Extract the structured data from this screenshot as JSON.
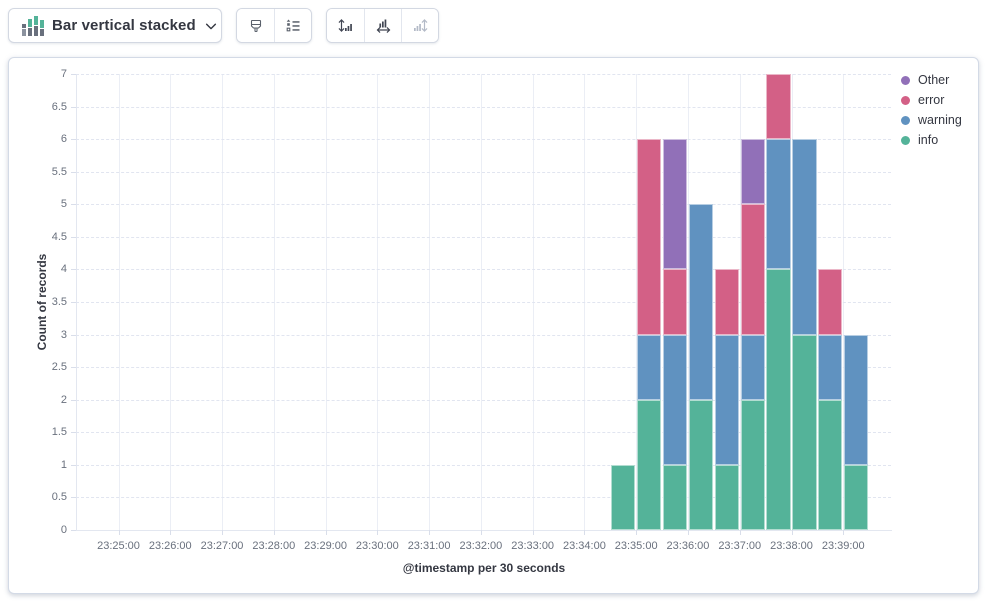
{
  "toolbar": {
    "chart_type": {
      "label": "Bar vertical stacked",
      "icon": "bar-vertical-stacked-icon"
    },
    "buttons": [
      {
        "id": "visual-options",
        "icon": "paint-brush-icon",
        "disabled": false
      },
      {
        "id": "legend-settings",
        "icon": "legend-list-icon",
        "disabled": false
      },
      {
        "id": "left-axis-settings",
        "icon": "left-axis-icon",
        "disabled": false
      },
      {
        "id": "bottom-axis-settings",
        "icon": "bottom-axis-icon",
        "disabled": false
      },
      {
        "id": "right-axis-settings",
        "icon": "right-axis-icon",
        "disabled": true
      }
    ]
  },
  "chart_data": {
    "type": "bar",
    "stacked": true,
    "orientation": "vertical",
    "xlabel": "@timestamp per 30 seconds",
    "ylabel": "Count of records",
    "ylim": [
      0,
      7
    ],
    "y_tick_step": 0.5,
    "x_tick_labels": [
      "23:25:00",
      "23:26:00",
      "23:27:00",
      "23:28:00",
      "23:29:00",
      "23:30:00",
      "23:31:00",
      "23:32:00",
      "23:33:00",
      "23:34:00",
      "23:35:00",
      "23:36:00",
      "23:37:00",
      "23:38:00",
      "23:39:00"
    ],
    "bucket_seconds": 30,
    "buckets": [
      "23:34:30",
      "23:35:00",
      "23:35:30",
      "23:36:00",
      "23:36:30",
      "23:37:00",
      "23:37:30",
      "23:38:00",
      "23:38:30",
      "23:39:00"
    ],
    "series": [
      {
        "name": "info",
        "color": "#54B399",
        "values": [
          1,
          2,
          1,
          2,
          1,
          2,
          4,
          3,
          2,
          1
        ]
      },
      {
        "name": "warning",
        "color": "#6092C0",
        "values": [
          0,
          1,
          2,
          3,
          2,
          1,
          2,
          3,
          1,
          2
        ]
      },
      {
        "name": "error",
        "color": "#D36086",
        "values": [
          0,
          3,
          1,
          0,
          1,
          2,
          1,
          0,
          1,
          0
        ]
      },
      {
        "name": "Other",
        "color": "#9170B8",
        "values": [
          0,
          0,
          2,
          0,
          0,
          1,
          0,
          0,
          0,
          0
        ]
      }
    ],
    "legend": {
      "position": "right",
      "items": [
        "Other",
        "error",
        "warning",
        "info"
      ]
    },
    "grid": {
      "horizontal": "dashed",
      "vertical": "solid"
    }
  }
}
